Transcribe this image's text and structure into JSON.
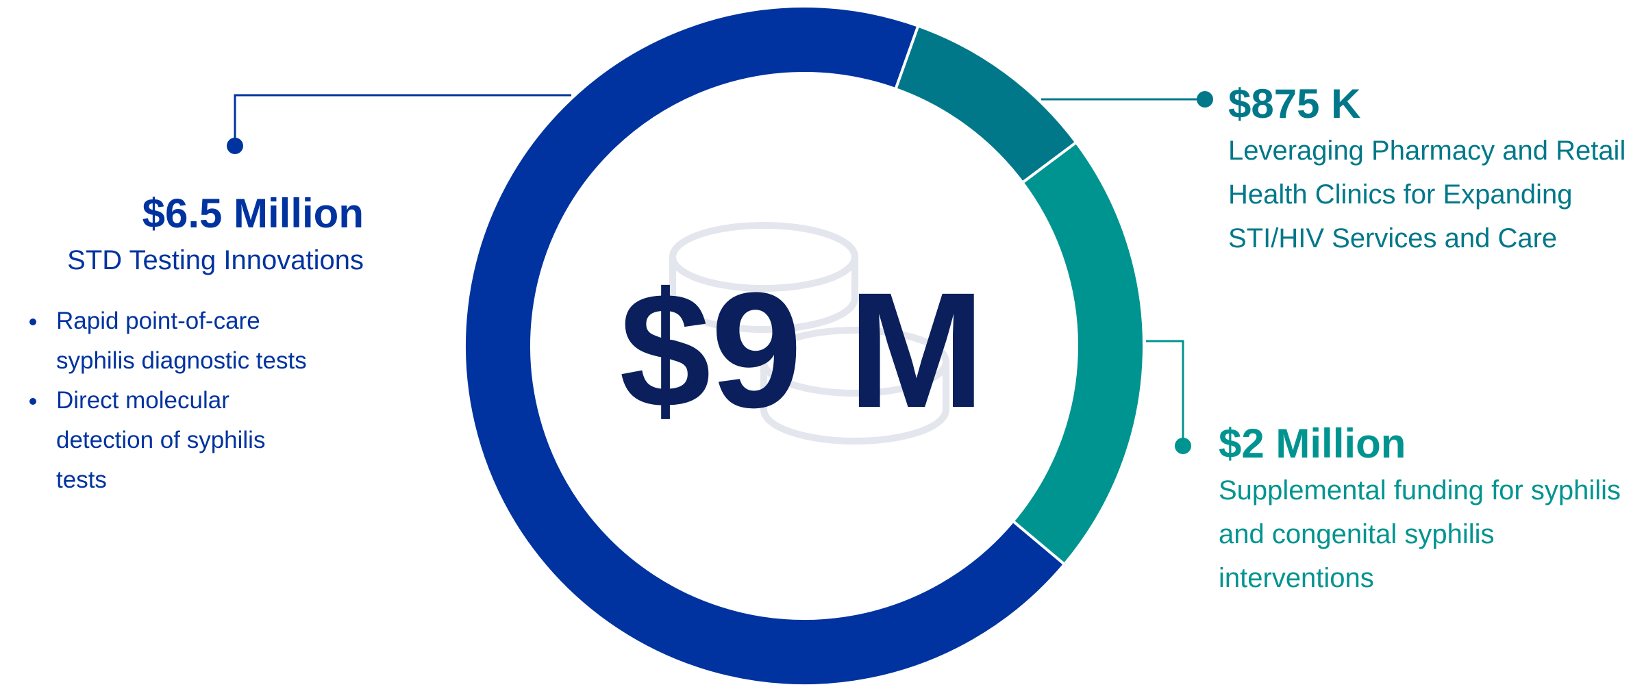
{
  "chart_data": {
    "type": "pie",
    "center_label": "$9 M",
    "categories": [
      "STD Testing Innovations",
      "Leveraging Pharmacy and Retail Health Clinics for Expanding STI/HIV Services and Care",
      "Supplemental funding for syphilis and congenital syphilis interventions"
    ],
    "values": [
      6500000,
      875000,
      2000000
    ],
    "value_labels": [
      "$6.5 Million",
      "$875 K",
      "$2 Million"
    ],
    "colors": [
      "#0033a0",
      "#00788a",
      "#009490"
    ],
    "bullets": [
      "Rapid point-of-care syphilis diagnostic tests",
      "Direct molecular detection of syphilis tests"
    ]
  }
}
